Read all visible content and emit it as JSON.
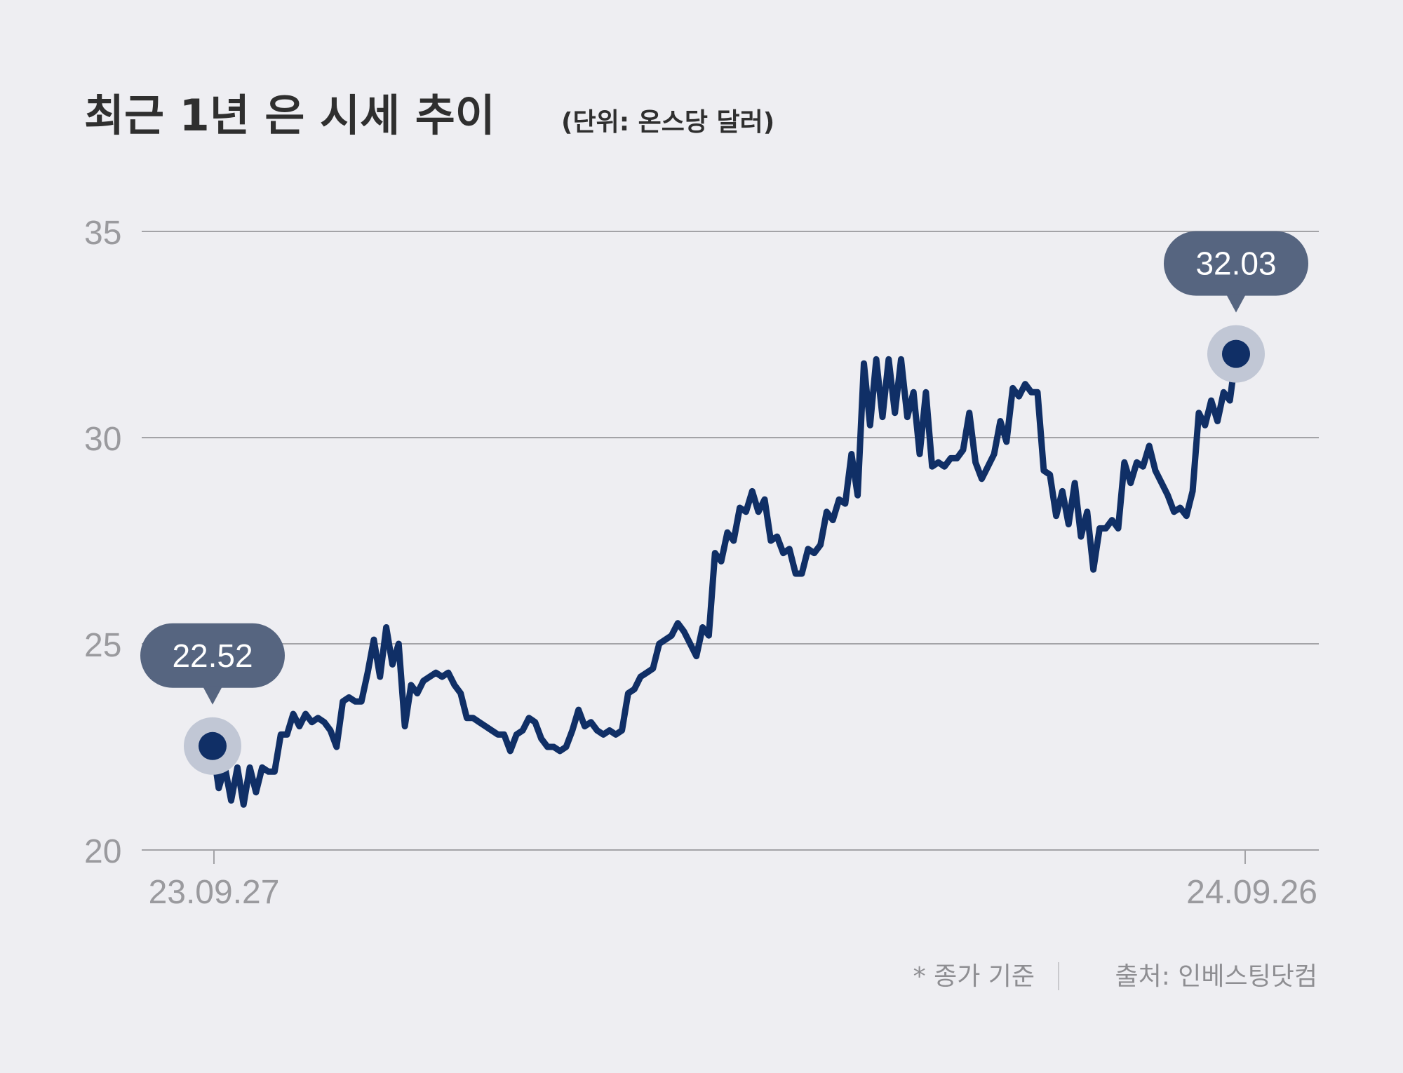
{
  "chart_data": {
    "type": "line",
    "title": "최근 1년 은 시세 추이",
    "unit_label": "(단위: 온스당 달러)",
    "y_ticks": [
      "35",
      "30",
      "25",
      "20"
    ],
    "ylim": [
      20,
      35
    ],
    "x_tick_labels": [
      "23.09.27",
      "24.09.26"
    ],
    "grid": true,
    "series": [
      {
        "values": [
          22.52,
          21.5,
          22.0,
          21.2,
          22.0,
          21.1,
          22.0,
          21.4,
          22.0,
          21.9,
          21.9,
          22.8,
          22.8,
          23.3,
          23.0,
          23.3,
          23.1,
          23.2,
          23.1,
          22.9,
          22.5,
          23.6,
          23.7,
          23.6,
          23.6,
          24.3,
          25.1,
          24.2,
          25.4,
          24.5,
          25.0,
          23.0,
          24.0,
          23.8,
          24.1,
          24.2,
          24.3,
          24.2,
          24.3,
          24.0,
          23.8,
          23.2,
          23.2,
          23.1,
          23.0,
          22.9,
          22.8,
          22.8,
          22.4,
          22.8,
          22.9,
          23.2,
          23.1,
          22.7,
          22.5,
          22.5,
          22.4,
          22.5,
          22.9,
          23.4,
          23.0,
          23.1,
          22.9,
          22.8,
          22.9,
          22.8,
          22.9,
          23.8,
          23.9,
          24.2,
          24.3,
          24.4,
          25.0,
          25.1,
          25.2,
          25.5,
          25.3,
          25.0,
          24.7,
          25.4,
          25.2,
          27.2,
          27.0,
          27.7,
          27.5,
          28.3,
          28.2,
          28.7,
          28.2,
          28.5,
          27.5,
          27.6,
          27.2,
          27.3,
          26.7,
          26.7,
          27.3,
          27.2,
          27.4,
          28.2,
          28.0,
          28.5,
          28.4,
          29.6,
          28.6,
          31.8,
          30.3,
          31.9,
          30.5,
          31.9,
          30.6,
          31.9,
          30.5,
          31.1,
          29.6,
          31.1,
          29.3,
          29.4,
          29.3,
          29.5,
          29.5,
          29.7,
          30.6,
          29.4,
          29.0,
          29.3,
          29.6,
          30.4,
          29.9,
          31.2,
          31.0,
          31.3,
          31.1,
          31.1,
          29.2,
          29.1,
          28.1,
          28.7,
          27.9,
          28.9,
          27.6,
          28.2,
          26.8,
          27.8,
          27.8,
          28.0,
          27.8,
          29.4,
          28.9,
          29.4,
          29.3,
          29.8,
          29.2,
          28.9,
          28.6,
          28.2,
          28.3,
          28.1,
          28.7,
          30.6,
          30.3,
          30.9,
          30.4,
          31.1,
          30.9,
          32.03
        ]
      }
    ],
    "annotations": [
      {
        "point": "first",
        "value": "22.52"
      },
      {
        "point": "last",
        "value": "32.03"
      }
    ],
    "colors": {
      "line": "#102f66",
      "marker_halo": "#c1c7d5",
      "bubble": "#566580",
      "grid": "#a3a3a7",
      "tick_text": "#9a9a9e",
      "background": "#eeeef2"
    }
  },
  "footer": {
    "note": "* 종가 기준",
    "source": "출처: 인베스팅닷컴"
  }
}
